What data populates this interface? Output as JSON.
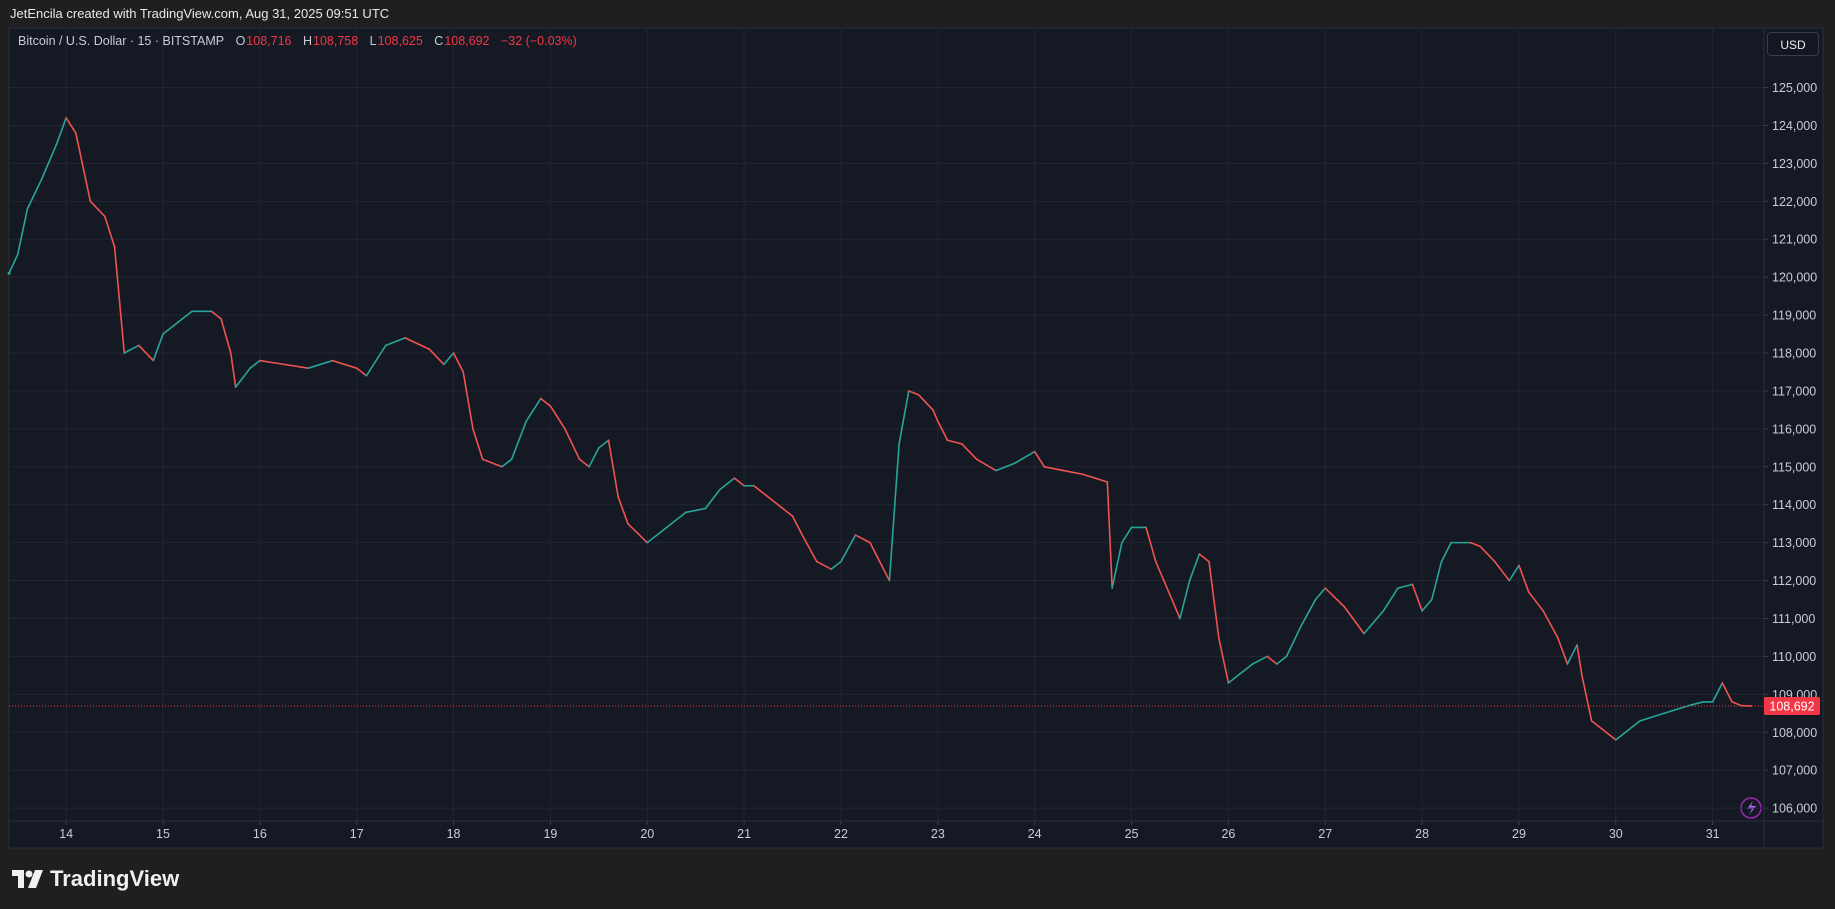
{
  "header": {
    "text": "JetEncila created with TradingView.com, Aug 31, 2025 09:51 UTC"
  },
  "legend": {
    "symbol": "Bitcoin / U.S. Dollar · 15 · BITSTAMP",
    "open_key": "O",
    "open": "108,716",
    "high_key": "H",
    "high": "108,758",
    "low_key": "L",
    "low": "108,625",
    "close_key": "C",
    "close": "108,692",
    "change": "−32 (−0.03%)"
  },
  "currency_button": "USD",
  "footer": {
    "logo": "TradingView"
  },
  "chart_data": {
    "type": "line",
    "up_color": "#26a69a",
    "down_color": "#ef5350",
    "grid": true,
    "x": [
      13.41,
      13.5,
      13.6,
      13.75,
      13.9,
      14.0,
      14.1,
      14.25,
      14.4,
      14.5,
      14.6,
      14.75,
      14.9,
      15.0,
      15.15,
      15.3,
      15.5,
      15.6,
      15.7,
      15.75,
      15.9,
      16.0,
      16.25,
      16.5,
      16.75,
      17.0,
      17.1,
      17.3,
      17.5,
      17.75,
      17.9,
      18.0,
      18.1,
      18.2,
      18.3,
      18.5,
      18.6,
      18.75,
      18.9,
      19.0,
      19.15,
      19.3,
      19.4,
      19.5,
      19.6,
      19.7,
      19.8,
      20.0,
      20.2,
      20.4,
      20.6,
      20.75,
      20.9,
      21.0,
      21.1,
      21.25,
      21.5,
      21.6,
      21.75,
      21.9,
      22.0,
      22.15,
      22.3,
      22.4,
      22.5,
      22.6,
      22.7,
      22.8,
      22.95,
      23.0,
      23.1,
      23.25,
      23.4,
      23.6,
      23.8,
      24.0,
      24.1,
      24.3,
      24.5,
      24.75,
      24.8,
      24.9,
      25.0,
      25.15,
      25.25,
      25.4,
      25.5,
      25.6,
      25.7,
      25.8,
      25.9,
      26.0,
      26.1,
      26.25,
      26.4,
      26.5,
      26.6,
      26.75,
      26.9,
      27.0,
      27.2,
      27.4,
      27.6,
      27.75,
      27.9,
      28.0,
      28.1,
      28.2,
      28.3,
      28.5,
      28.6,
      28.75,
      28.9,
      29.0,
      29.1,
      29.25,
      29.4,
      29.5,
      29.6,
      29.65,
      29.75,
      29.9,
      30.0,
      30.1,
      30.25,
      30.5,
      30.75,
      30.9,
      31.0,
      31.1,
      31.2,
      31.3,
      31.4
    ],
    "series": [
      {
        "name": "BTCUSD",
        "values": [
          120100,
          120600,
          121800,
          122600,
          123500,
          124200,
          123800,
          122000,
          121600,
          120800,
          118000,
          118200,
          117800,
          118500,
          118800,
          119100,
          119100,
          118900,
          118000,
          117100,
          117600,
          117800,
          117700,
          117600,
          117800,
          117600,
          117400,
          118200,
          118400,
          118100,
          117700,
          118000,
          117500,
          116000,
          115200,
          115000,
          115200,
          116200,
          116800,
          116600,
          116000,
          115200,
          115000,
          115500,
          115700,
          114200,
          113500,
          113000,
          113400,
          113800,
          113900,
          114400,
          114700,
          114500,
          114500,
          114200,
          113700,
          113200,
          112500,
          112300,
          112500,
          113200,
          113000,
          112500,
          112000,
          115600,
          117000,
          116900,
          116500,
          116200,
          115700,
          115600,
          115200,
          114900,
          115100,
          115400,
          115000,
          114900,
          114800,
          114600,
          111800,
          113000,
          113400,
          113400,
          112500,
          111600,
          111000,
          112000,
          112700,
          112500,
          110500,
          109300,
          109500,
          109800,
          110000,
          109800,
          110000,
          110800,
          111500,
          111800,
          111300,
          110600,
          111200,
          111800,
          111900,
          111200,
          111500,
          112500,
          113000,
          113000,
          112900,
          112500,
          112000,
          112400,
          111700,
          111200,
          110500,
          109800,
          110300,
          109500,
          108300,
          108000,
          107800,
          108000,
          108300,
          108500,
          108700,
          108800,
          108800,
          109300,
          108800,
          108700,
          108692
        ]
      }
    ],
    "xlim": [
      13.41,
      31.53
    ],
    "xticks": [
      14,
      15,
      16,
      17,
      18,
      19,
      20,
      21,
      22,
      23,
      24,
      25,
      26,
      27,
      28,
      29,
      30,
      31
    ],
    "ylim": [
      105660,
      126570
    ],
    "yticks": [
      {
        "value": 106000,
        "label": "106,000"
      },
      {
        "value": 107000,
        "label": "107,000"
      },
      {
        "value": 108000,
        "label": "108,000"
      },
      {
        "value": 109000,
        "label": "109,000"
      },
      {
        "value": 110000,
        "label": "110,000"
      },
      {
        "value": 111000,
        "label": "111,000"
      },
      {
        "value": 112000,
        "label": "112,000"
      },
      {
        "value": 113000,
        "label": "113,000"
      },
      {
        "value": 114000,
        "label": "114,000"
      },
      {
        "value": 115000,
        "label": "115,000"
      },
      {
        "value": 116000,
        "label": "116,000"
      },
      {
        "value": 117000,
        "label": "117,000"
      },
      {
        "value": 118000,
        "label": "118,000"
      },
      {
        "value": 119000,
        "label": "119,000"
      },
      {
        "value": 120000,
        "label": "120,000"
      },
      {
        "value": 121000,
        "label": "121,000"
      },
      {
        "value": 122000,
        "label": "122,000"
      },
      {
        "value": 123000,
        "label": "123,000"
      },
      {
        "value": 124000,
        "label": "124,000"
      },
      {
        "value": 125000,
        "label": "125,000"
      }
    ],
    "last_price": {
      "value": 108692,
      "label": "108,692"
    },
    "last_price_color": "#f23645"
  }
}
